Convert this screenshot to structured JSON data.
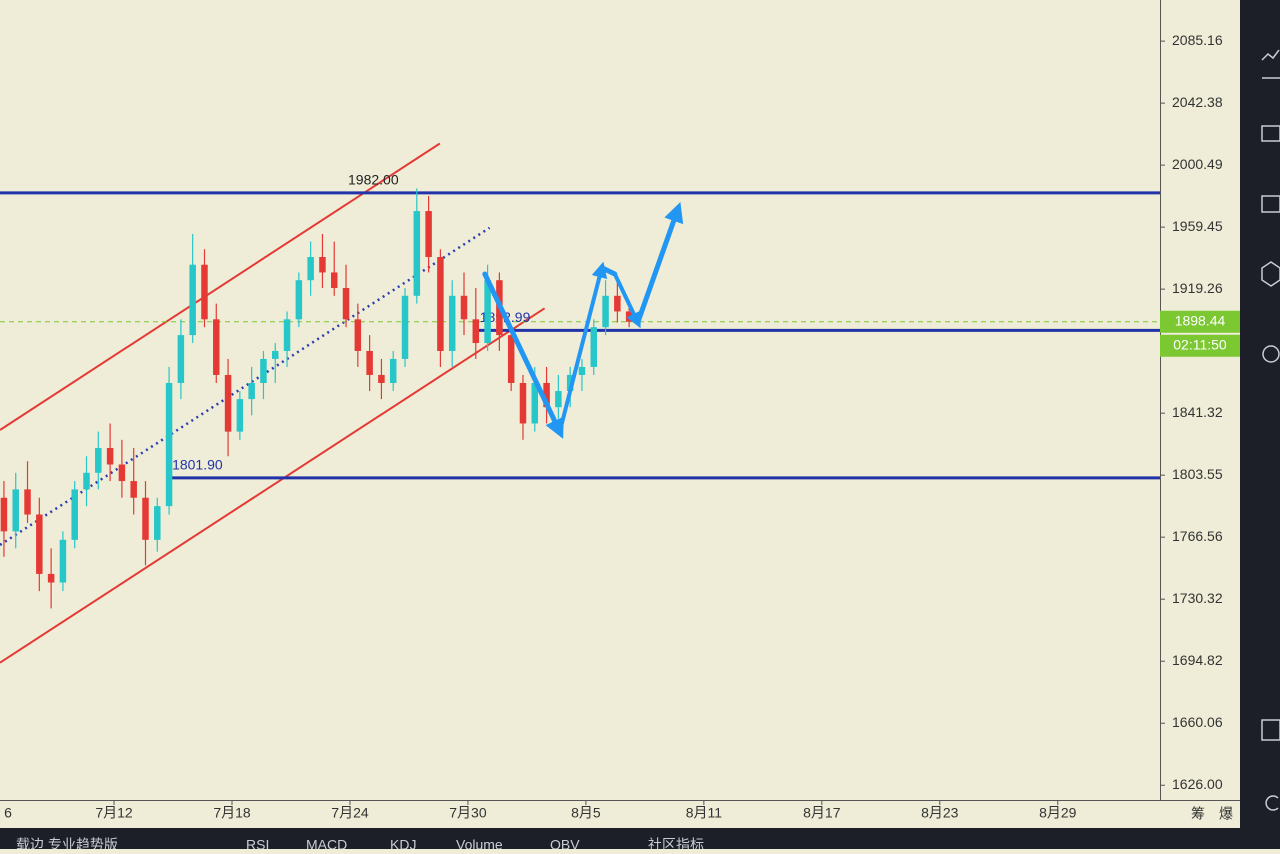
{
  "chart_data": {
    "type": "candlestick",
    "log_scale": true,
    "background": "#efedd7",
    "up_color": "#26c6c9",
    "down_color": "#e53935",
    "x": [
      6.4,
      7.0,
      7.6,
      8.2,
      8.8,
      9.4,
      10.0,
      10.6,
      11.2,
      11.8,
      12.4,
      13.0,
      13.6,
      14.2,
      14.8,
      15.4,
      16.0,
      16.6,
      17.2,
      17.8,
      18.4,
      19.0,
      19.6,
      20.2,
      20.8,
      21.4,
      22.0,
      22.6,
      23.2,
      23.8,
      24.4,
      25.0,
      25.6,
      26.2,
      26.8,
      27.4,
      28.0,
      28.6,
      29.2,
      29.8,
      30.4,
      31.0,
      31.6,
      32.2,
      32.8,
      33.4,
      34.0,
      34.6,
      35.2,
      35.8,
      36.4,
      37.0,
      37.6,
      38.2
    ],
    "open": [
      1790,
      1770,
      1795,
      1780,
      1745,
      1740,
      1765,
      1795,
      1805,
      1820,
      1810,
      1800,
      1790,
      1765,
      1785,
      1860,
      1890,
      1935,
      1900,
      1865,
      1830,
      1850,
      1860,
      1875,
      1880,
      1900,
      1925,
      1940,
      1930,
      1920,
      1900,
      1880,
      1865,
      1860,
      1875,
      1915,
      1970,
      1940,
      1880,
      1915,
      1900,
      1885,
      1925,
      1890,
      1860,
      1835,
      1860,
      1845,
      1855,
      1865,
      1870,
      1895,
      1915,
      1905
    ],
    "high": [
      1800,
      1805,
      1812,
      1790,
      1760,
      1770,
      1800,
      1815,
      1830,
      1835,
      1825,
      1820,
      1800,
      1790,
      1870,
      1900,
      1955,
      1945,
      1910,
      1875,
      1855,
      1870,
      1880,
      1885,
      1905,
      1930,
      1950,
      1955,
      1950,
      1935,
      1910,
      1890,
      1875,
      1880,
      1920,
      1985,
      1980,
      1945,
      1925,
      1930,
      1920,
      1935,
      1930,
      1895,
      1865,
      1870,
      1870,
      1865,
      1870,
      1875,
      1900,
      1925,
      1925,
      1912
    ],
    "low": [
      1755,
      1760,
      1775,
      1735,
      1725,
      1735,
      1760,
      1785,
      1795,
      1800,
      1790,
      1780,
      1750,
      1758,
      1780,
      1850,
      1885,
      1895,
      1860,
      1815,
      1825,
      1840,
      1850,
      1860,
      1870,
      1895,
      1915,
      1920,
      1915,
      1895,
      1870,
      1855,
      1850,
      1855,
      1870,
      1910,
      1930,
      1870,
      1870,
      1890,
      1875,
      1880,
      1880,
      1855,
      1825,
      1830,
      1835,
      1838,
      1845,
      1855,
      1865,
      1890,
      1898,
      1895
    ],
    "close": [
      1770,
      1795,
      1780,
      1745,
      1740,
      1765,
      1795,
      1805,
      1820,
      1810,
      1800,
      1790,
      1765,
      1785,
      1860,
      1890,
      1935,
      1900,
      1865,
      1830,
      1850,
      1860,
      1875,
      1880,
      1900,
      1925,
      1940,
      1930,
      1920,
      1900,
      1880,
      1865,
      1860,
      1875,
      1915,
      1970,
      1940,
      1880,
      1915,
      1900,
      1885,
      1925,
      1890,
      1860,
      1835,
      1860,
      1845,
      1855,
      1865,
      1870,
      1895,
      1915,
      1905,
      1898.44
    ],
    "xlim": [
      6.2,
      65.2
    ],
    "xticks": [
      {
        "value": 6,
        "label": "6"
      },
      {
        "value": 12,
        "label": "7月12"
      },
      {
        "value": 18,
        "label": "7月18"
      },
      {
        "value": 24,
        "label": "7月24"
      },
      {
        "value": 30,
        "label": "7月30"
      },
      {
        "value": 36,
        "label": "8月5"
      },
      {
        "value": 42,
        "label": "8月11"
      },
      {
        "value": 48,
        "label": "8月17"
      },
      {
        "value": 54,
        "label": "8月23"
      },
      {
        "value": 60,
        "label": "8月29"
      }
    ],
    "ylim": [
      1618,
      2114
    ],
    "yticks": [
      2085.16,
      2042.38,
      2000.49,
      1959.45,
      1919.26,
      1841.32,
      1803.55,
      1766.56,
      1730.32,
      1694.82,
      1660.06,
      {
        "value": 1626,
        "label": "1626.00"
      }
    ],
    "levels": [
      {
        "value": 1982,
        "label": "1982.00",
        "x_start": 6.2,
        "color": "#2233aa"
      },
      {
        "value": 1892.99,
        "label": "1892.99",
        "x_start": 30.5,
        "color": "#2233aa"
      },
      {
        "value": 1801.9,
        "label": "1801.90",
        "x_start": 14.85,
        "color": "#2233aa"
      }
    ],
    "trend_lines": [
      {
        "color": "#e53935",
        "style": "solid",
        "x": [
          6.2,
          28.57
        ],
        "y": [
          1831,
          2015
        ]
      },
      {
        "color": "#e53935",
        "style": "solid",
        "x": [
          6.2,
          33.9
        ],
        "y": [
          1694,
          1907
        ]
      },
      {
        "color": "#2b3db5",
        "style": "dotted",
        "x": [
          6.2,
          31.1
        ],
        "y": [
          1762,
          1959
        ]
      }
    ],
    "arrows": {
      "color": "#2196f3",
      "x": [
        30.86,
        34.67,
        36.81,
        37.47,
        38.64,
        40.67
      ],
      "y": [
        1929,
        1830,
        1933,
        1929,
        1898,
        1971
      ]
    },
    "last_price": {
      "value": 1898.44,
      "color": "#7cc832"
    },
    "countdown": "02:11:50",
    "bottom_toolbar": [
      "载边 专业趋势版",
      "RSI",
      "MACD",
      "KDJ",
      "Volume",
      "OBV",
      "社区指标"
    ],
    "corner_labels": [
      "筹",
      "爆"
    ]
  }
}
